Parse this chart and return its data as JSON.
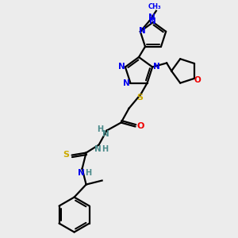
{
  "bg_color": "#ececec",
  "atom_colors": {
    "N": "#0000ee",
    "O": "#ee0000",
    "S": "#ccaa00",
    "C": "#000000",
    "H": "#4a8a8a"
  },
  "bond_color": "#000000",
  "line_width": 1.6,
  "figsize": [
    3.0,
    3.0
  ],
  "dpi": 100
}
